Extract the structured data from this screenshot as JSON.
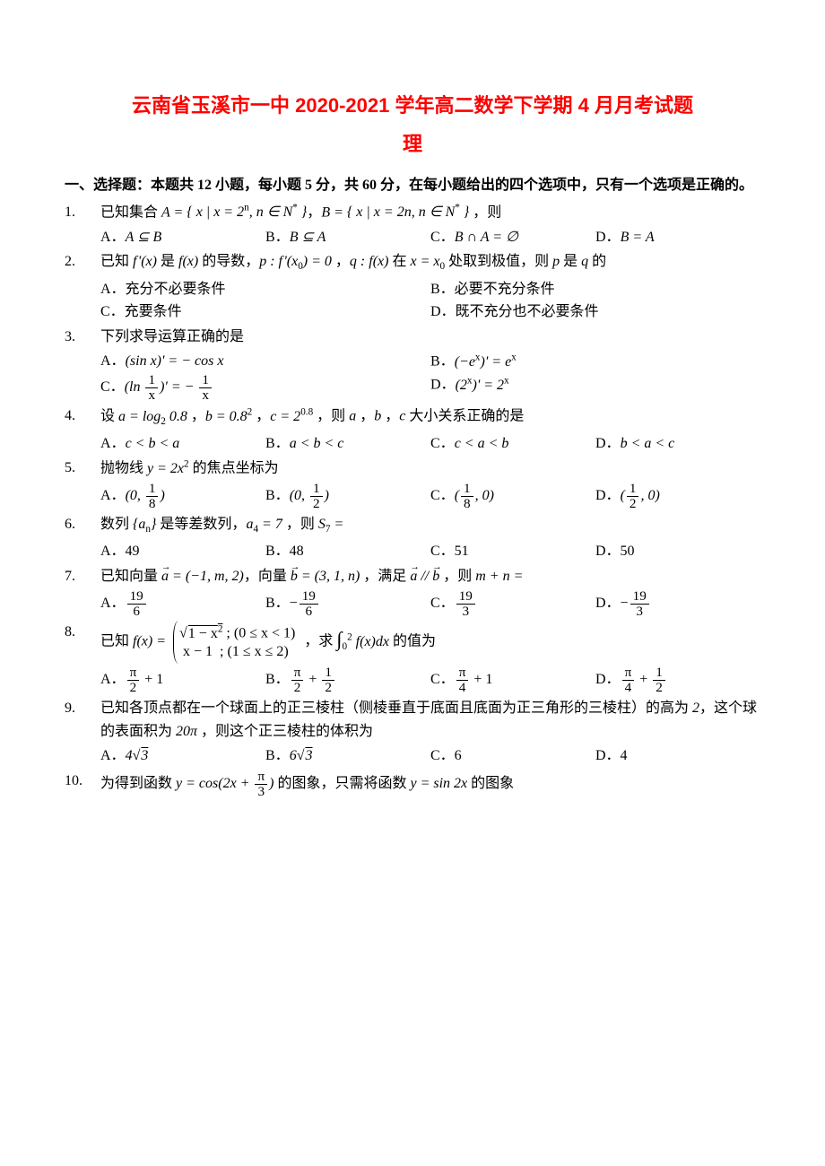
{
  "title": "云南省玉溪市一中 2020-2021 学年高二数学下学期 4 月月考试题",
  "subtitle": "理",
  "section1_head": "一、选择题：本题共 12 小题，每小题 5 分，共 60 分，在每小题给出的四个选项中，只有一个选项是正确的。",
  "colors": {
    "title": "#ff0000",
    "text": "#000000",
    "background": "#ffffff"
  },
  "typography": {
    "body_fontsize_pt": 12,
    "title_fontsize_pt": 16
  },
  "questions": [
    {
      "num": "1.",
      "stem_html": "已知集合 <span class='math'>A = <span class='brace-set'>{ x | x = 2<sup>n</sup>, n ∈ N<sup>*</sup> }</span></span>，<span class='math'>B = <span class='brace-set'>{ x | x = 2n, n ∈ N<sup>*</sup> }</span></span> ，则",
      "opts": [
        "A．<span class='math'>A ⊆ B</span>",
        "B．<span class='math'>B ⊆ A</span>",
        "C．<span class='math'>B ∩ A = ∅</span>",
        "D．<span class='math'>B = A</span>"
      ],
      "cols": 4
    },
    {
      "num": "2.",
      "stem_html": "已知 <span class='math'>f&#8202;'(x)</span> 是 <span class='math'>f(x)</span> 的导数，<span class='math'>p : f&#8202;'(x<sub>0</sub>) = 0</span> ，<span class='math'>q : f(x)</span> 在 <span class='math'>x = x<sub>0</sub></span> 处取到极值，则 <span class='math'>p</span> 是 <span class='math'>q</span> 的",
      "opts": [
        "A．充分不必要条件",
        "B．必要不充分条件",
        "C．充要条件",
        "D．既不充分也不必要条件"
      ],
      "cols": 2
    },
    {
      "num": "3.",
      "stem_html": "下列求导运算正确的是",
      "opts": [
        "A．<span class='math'>(sin x)' = − cos x</span>",
        "B．<span class='math'>(−e<sup>x</sup>)' = e<sup>x</sup></span>",
        "C．<span class='math'>(ln <span class='frac'><span class='num'>1</span><span class='den'>x</span></span>)' = − <span class='frac'><span class='num'>1</span><span class='den'>x</span></span></span>",
        "D．<span class='math'>(2<sup>x</sup>)' = 2<sup>x</sup></span>"
      ],
      "cols": 2
    },
    {
      "num": "4.",
      "stem_html": "设 <span class='math'>a = log<sub>2</sub> 0.8</span> ，<span class='math'>b = 0.8<sup>2</sup></span> ，<span class='math'>c = 2<sup>0.8</sup></span> ，则 <span class='math'>a</span> ，<span class='math'>b</span> ，<span class='math'>c</span> 大小关系正确的是",
      "opts": [
        "A．<span class='math'>c &lt; b &lt; a</span>",
        "B．<span class='math'>a &lt; b &lt; c</span>",
        "C．<span class='math'>c &lt; a &lt; b</span>",
        "D．<span class='math'>b &lt; a &lt; c</span>"
      ],
      "cols": 4
    },
    {
      "num": "5.",
      "stem_html": "抛物线 <span class='math'>y = 2x<sup>2</sup></span> 的焦点坐标为",
      "opts": [
        "A．<span class='math'>(0, <span class='frac'><span class='num'>1</span><span class='den'>8</span></span>)</span>",
        "B．<span class='math'>(0, <span class='frac'><span class='num'>1</span><span class='den'>2</span></span>)</span>",
        "C．<span class='math'>(<span class='frac'><span class='num'>1</span><span class='den'>8</span></span>, 0)</span>",
        "D．<span class='math'>(<span class='frac'><span class='num'>1</span><span class='den'>2</span></span>, 0)</span>"
      ],
      "cols": 4
    },
    {
      "num": "6.",
      "stem_html": "数列 <span class='math brace-set'>{a<sub>n</sub>}</span> 是等差数列，<span class='math'>a<sub>4</sub> = 7</span> ，则 <span class='math'>S<sub>7</sub> =</span>",
      "opts": [
        "A．49",
        "B．48",
        "C．51",
        "D．50"
      ],
      "cols": 4
    },
    {
      "num": "7.",
      "stem_html": "已知向量 <span class='math'><span class='vec'>a</span> = (−1, m, 2)</span>，向量 <span class='math'><span class='vec'>b</span> = (3, 1, n)</span> ，满足 <span class='math'><span class='vec'>a</span> // <span class='vec'>b</span></span> ，则 <span class='math'>m + n =</span>",
      "opts": [
        "A．<span class='frac'><span class='num'>19</span><span class='den'>6</span></span>",
        "B．−<span class='frac'><span class='num'>19</span><span class='den'>6</span></span>",
        "C．<span class='frac'><span class='num'>19</span><span class='den'>3</span></span>",
        "D．−<span class='frac'><span class='num'>19</span><span class='den'>3</span></span>"
      ],
      "cols": 4
    },
    {
      "num": "8.",
      "stem_html": "已知 <span class='math'>f(x) = </span><span class='piecewise'><div>√<span class='sqrt'>1 − x<sup>2</sup></span>&nbsp;; (0 ≤ x &lt; 1)</div><div>&nbsp;x − 1 &nbsp;; (1 ≤ x ≤ 2)</div></span> ，求 <span class='math'><span class='int'>∫</span><sub>0</sub><sup>2</sup> f(x)dx</span> 的值为",
      "opts": [
        "A．<span class='frac'><span class='num'>π</span><span class='den'>2</span></span> + 1",
        "B．<span class='frac'><span class='num'>π</span><span class='den'>2</span></span> + <span class='frac'><span class='num'>1</span><span class='den'>2</span></span>",
        "C．<span class='frac'><span class='num'>π</span><span class='den'>4</span></span> + 1",
        "D．<span class='frac'><span class='num'>π</span><span class='den'>4</span></span> + <span class='frac'><span class='num'>1</span><span class='den'>2</span></span>"
      ],
      "cols": 4
    },
    {
      "num": "9.",
      "stem_html": "已知各顶点都在一个球面上的正三棱柱（侧棱垂直于底面且底面为正三角形的三棱柱）的高为 <span class='math'>2</span>，这个球的表面积为 <span class='math'>20π</span> ，则这个正三棱柱的体积为",
      "opts": [
        "A．<span class='math'>4√<span class='sqrt'>3</span></span>",
        "B．<span class='math'>6√<span class='sqrt'>3</span></span>",
        "C．6",
        "D．4"
      ],
      "cols": 4
    },
    {
      "num": "10.",
      "stem_html": "为得到函数 <span class='math'>y = cos(2x + <span class='frac'><span class='num'>π</span><span class='den'>3</span></span>)</span> 的图象，只需将函数 <span class='math'>y = sin 2x</span> 的图象",
      "opts": [],
      "cols": 4
    }
  ]
}
